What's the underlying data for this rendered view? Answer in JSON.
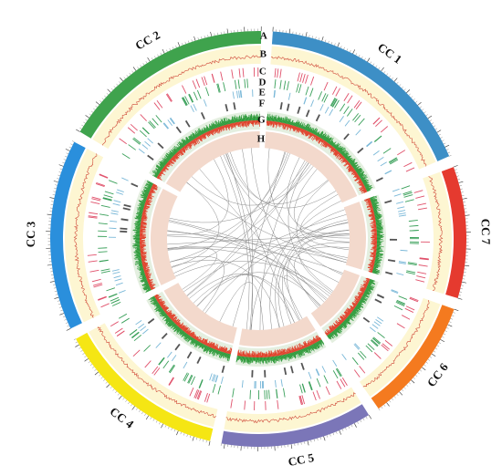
{
  "chromosomes": [
    {
      "id": "cc1",
      "label": "CC 1",
      "color": "#3d8fc6",
      "length_mb": 68
    },
    {
      "id": "cc7",
      "label": "CC 7",
      "color": "#e53a2f",
      "length_mb": 40
    },
    {
      "id": "cc6",
      "label": "CC 6",
      "color": "#f47a1f",
      "length_mb": 38
    },
    {
      "id": "cc5",
      "label": "CC 5",
      "color": "#7b76b8",
      "length_mb": 46
    },
    {
      "id": "cc4",
      "label": "CC 4",
      "color": "#f5e614",
      "length_mb": 52
    },
    {
      "id": "cc3",
      "label": "CC 3",
      "color": "#2a8fdc",
      "length_mb": 58
    },
    {
      "id": "cc2",
      "label": "CC 2",
      "color": "#3fa34d",
      "length_mb": 65
    }
  ],
  "track_letters": [
    "A",
    "B",
    "C",
    "D",
    "E",
    "F",
    "G",
    "H"
  ],
  "colors": {
    "track_b_band": "#fdf6d2",
    "track_b_line": "#d04a3a",
    "track_c_ticks": "#e0506a",
    "track_d_ticks": "#3aa05a",
    "track_e_ticks": "#7ab8d8",
    "track_f_ticks": "#555555",
    "track_g_band": "#e4efe0",
    "track_g_green": "#2e9a3a",
    "track_g_red": "#e0402a",
    "track_h_band": "#f3d9cc",
    "links": "#8a8a8a"
  }
}
